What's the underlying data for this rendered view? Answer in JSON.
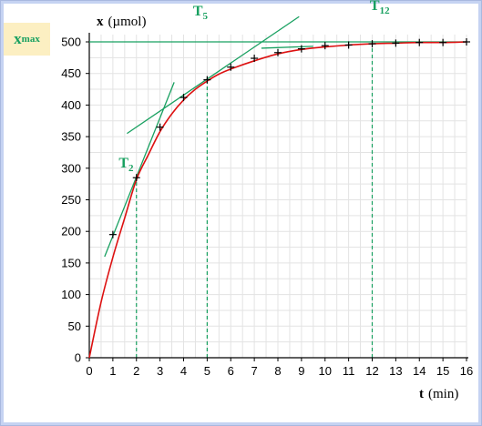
{
  "chart_data": {
    "type": "line",
    "xlabel": "t",
    "xlabel_unit": "(min)",
    "ylabel": "x",
    "ylabel_unit": "(µmol)",
    "xlim": [
      0,
      16
    ],
    "ylim": [
      0,
      500
    ],
    "x_ticks": [
      0,
      1,
      2,
      3,
      4,
      5,
      6,
      7,
      8,
      9,
      10,
      11,
      12,
      13,
      14,
      15,
      16
    ],
    "y_ticks": [
      0,
      50,
      100,
      150,
      200,
      250,
      300,
      350,
      400,
      450,
      500
    ],
    "grid": true,
    "series": [
      {
        "kind": "measured",
        "marker": "+",
        "color": "#000000",
        "x": [
          1,
          2,
          3,
          4,
          5,
          6,
          7,
          8,
          9,
          10,
          11,
          12,
          13,
          14,
          15,
          16
        ],
        "y": [
          195,
          285,
          365,
          412,
          440,
          460,
          474,
          483,
          489,
          494,
          495,
          497,
          498,
          499,
          499,
          500
        ]
      },
      {
        "kind": "fit-curve",
        "color": "#dd1111",
        "x": [
          0,
          0.5,
          1,
          1.5,
          2,
          2.5,
          3,
          3.5,
          4,
          4.5,
          5,
          5.5,
          6,
          7,
          8,
          9,
          10,
          11,
          12,
          13,
          14,
          15,
          16
        ],
        "y": [
          0,
          88,
          159,
          221,
          282,
          321,
          358,
          386,
          408,
          425,
          438,
          449,
          457,
          470,
          481,
          488,
          492,
          495,
          497,
          498,
          499,
          499,
          500
        ]
      }
    ],
    "asymptote": {
      "label": "x",
      "label_sub": "max",
      "y": 500,
      "color": "#18a060"
    },
    "tangents": [
      {
        "label": "T",
        "label_sub": "2",
        "at_x": 2,
        "x": [
          0.65,
          3.6
        ],
        "y": [
          160,
          436
        ]
      },
      {
        "label": "T",
        "label_sub": "5",
        "at_x": 5,
        "x": [
          1.6,
          8.9
        ],
        "y": [
          355,
          540
        ]
      },
      {
        "label": "T",
        "label_sub": "12",
        "at_x": 12,
        "x": [
          0,
          16
        ],
        "y": [
          500,
          500
        ]
      },
      {
        "label": "",
        "label_sub": "",
        "at_x": 8,
        "x": [
          7.3,
          9.5
        ],
        "y": [
          490,
          493
        ]
      }
    ],
    "marker_lines_x": [
      2,
      5,
      12
    ],
    "colors": {
      "frame": "#c5d3f2",
      "grid": "#e3e3e3",
      "curve": "#dd1111",
      "tangent": "#18a060",
      "xmax_box": "#fcefc2"
    }
  }
}
